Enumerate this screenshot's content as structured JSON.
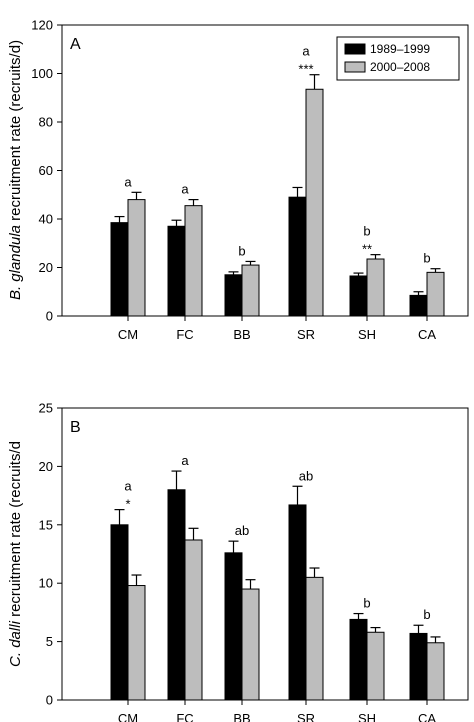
{
  "colors": {
    "series1": "#000000",
    "series2": "#bdbdbd",
    "axis": "#000000"
  },
  "chart_data": [
    {
      "type": "bar",
      "panel_label": "A",
      "ylabel_species": "B. glandula",
      "ylabel_rest": " recruitment rate (recruits/d)",
      "categories": [
        "CM",
        "FC",
        "BB",
        "SR",
        "SH",
        "CA"
      ],
      "ylim": [
        0,
        120
      ],
      "yticks": [
        0,
        20,
        40,
        60,
        80,
        100,
        120
      ],
      "grid": false,
      "legend_position": "top-right",
      "series": [
        {
          "name": "1989–1999",
          "values": [
            38.5,
            37,
            17,
            49,
            16.5,
            8.5
          ],
          "errors": [
            2.5,
            2.5,
            1.2,
            4,
            1.2,
            1.5
          ]
        },
        {
          "name": "2000–2008",
          "values": [
            48,
            45.5,
            21,
            93.5,
            23.5,
            18
          ],
          "errors": [
            3,
            2.5,
            1.5,
            6,
            1.8,
            1.5
          ]
        }
      ],
      "group_letters": [
        "a",
        "a",
        "b",
        "a",
        "b",
        "b"
      ],
      "stars": [
        "",
        "",
        "",
        "***",
        "**",
        ""
      ]
    },
    {
      "type": "bar",
      "panel_label": "B",
      "ylabel_species": "C. dalli",
      "ylabel_rest": " recruitment rate (recruits/d",
      "categories": [
        "CM",
        "FC",
        "BB",
        "SR",
        "SH",
        "CA"
      ],
      "ylim": [
        0,
        25
      ],
      "yticks": [
        0,
        5,
        10,
        15,
        20,
        25
      ],
      "grid": false,
      "series": [
        {
          "name": "1989–1999",
          "values": [
            15,
            18,
            12.6,
            16.7,
            6.9,
            5.7
          ],
          "errors": [
            1.3,
            1.6,
            1.0,
            1.6,
            0.5,
            0.7
          ]
        },
        {
          "name": "2000–2008",
          "values": [
            9.8,
            13.7,
            9.5,
            10.5,
            5.8,
            4.9
          ],
          "errors": [
            0.9,
            1.0,
            0.8,
            0.8,
            0.4,
            0.5
          ]
        }
      ],
      "group_letters": [
        "a",
        "a",
        "ab",
        "ab",
        "b",
        "b"
      ],
      "stars": [
        "*",
        "",
        "",
        "",
        "",
        ""
      ]
    }
  ]
}
